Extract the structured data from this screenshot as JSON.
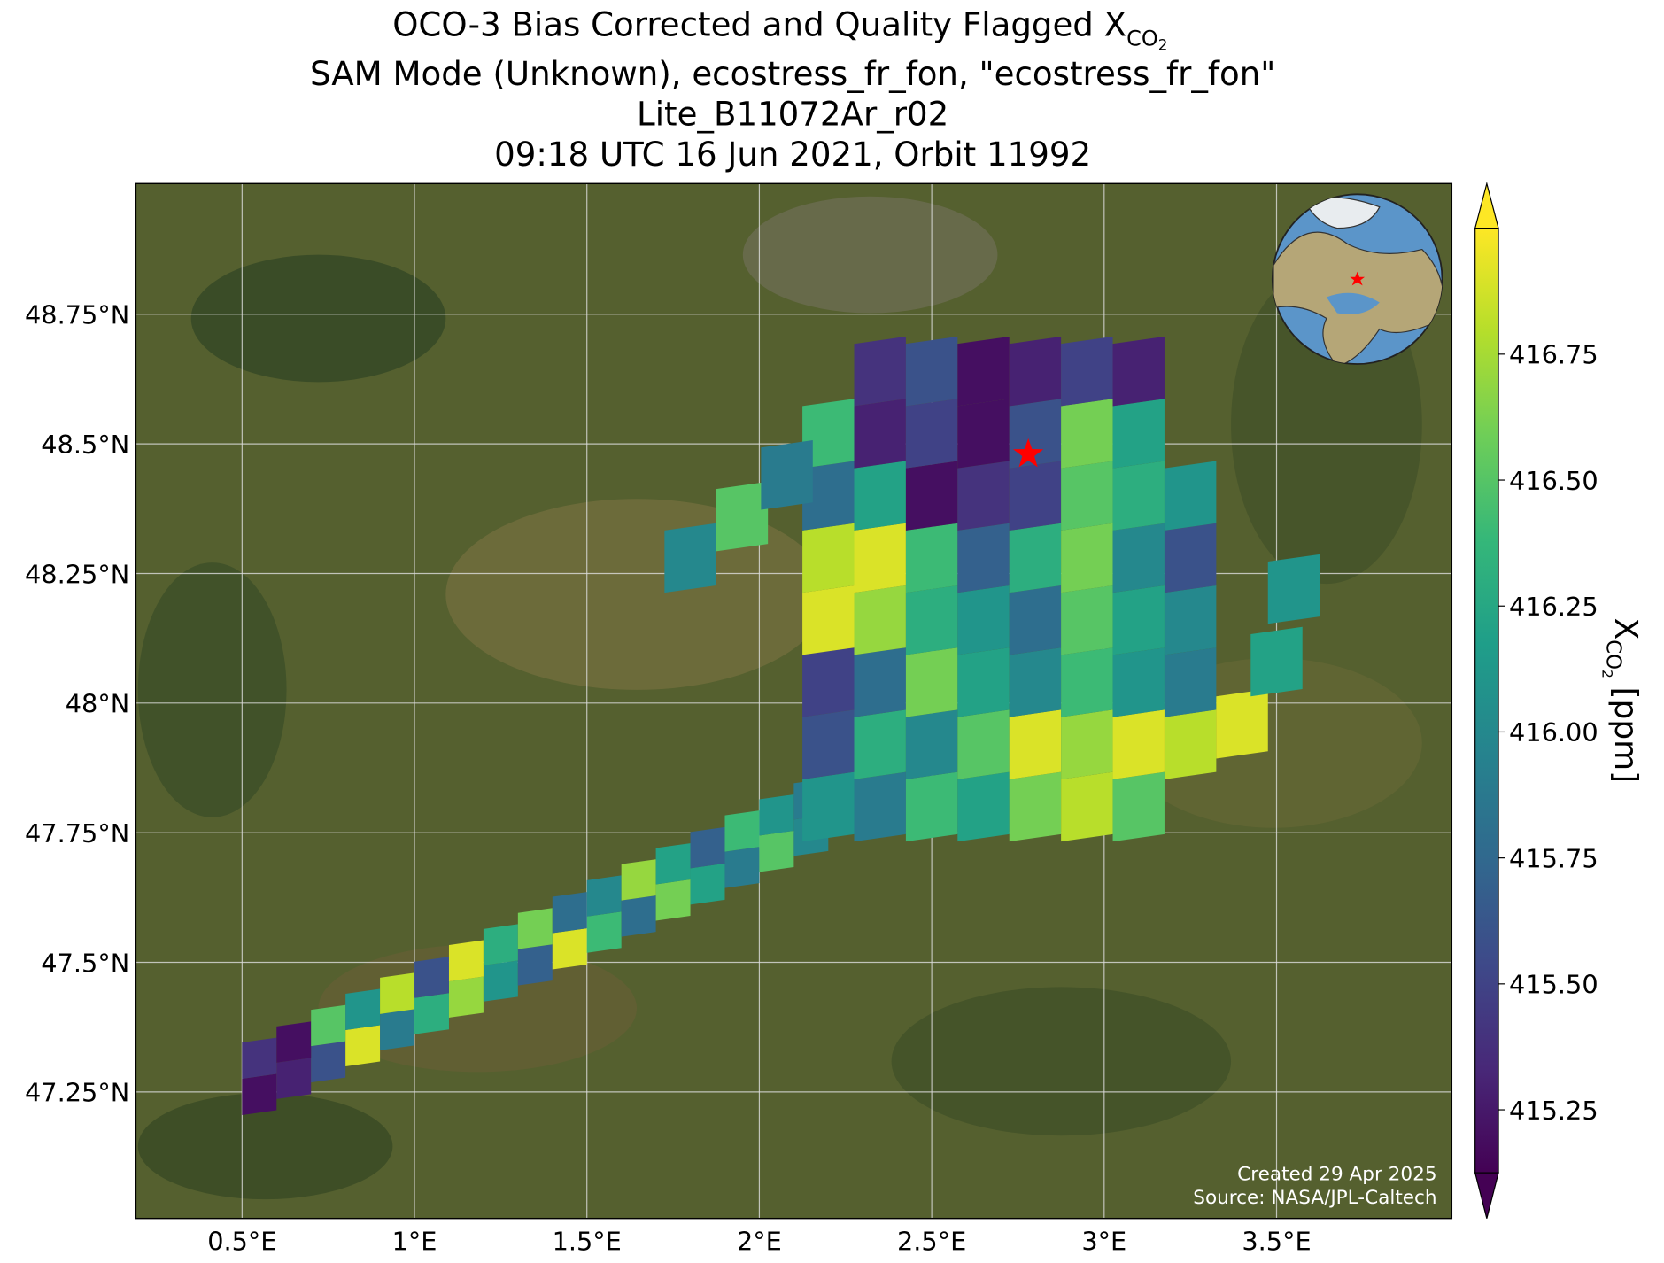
{
  "chart_data": {
    "type": "map",
    "title": [
      "OCO-3 Bias Corrected and Quality Flagged X",
      "SAM Mode (Unknown), ecostress_fr_fon, \"ecostress_fr_fon\"",
      "Lite_B11072Ar_r02",
      "09:18 UTC 16 Jun 2021, Orbit 11992"
    ],
    "title_subscript": "CO",
    "title_subscript2": "2",
    "xlim": [
      0.192,
      4.008
    ],
    "ylim": [
      47.006,
      49.002
    ],
    "xticks": [
      {
        "value": 0.5,
        "label": "0.5°E"
      },
      {
        "value": 1,
        "label": "1°E"
      },
      {
        "value": 1.5,
        "label": "1.5°E"
      },
      {
        "value": 2,
        "label": "2°E"
      },
      {
        "value": 2.5,
        "label": "2.5°E"
      },
      {
        "value": 3,
        "label": "3°E"
      },
      {
        "value": 3.5,
        "label": "3.5°E"
      }
    ],
    "yticks": [
      {
        "value": 47.25,
        "label": "47.25°N"
      },
      {
        "value": 47.5,
        "label": "47.5°N"
      },
      {
        "value": 47.75,
        "label": "47.75°N"
      },
      {
        "value": 48,
        "label": "48°N"
      },
      {
        "value": 48.25,
        "label": "48.25°N"
      },
      {
        "value": 48.5,
        "label": "48.5°N"
      },
      {
        "value": 48.75,
        "label": "48.75°N"
      }
    ],
    "grid": true,
    "colormap": "viridis",
    "clim": [
      415.125,
      417.0
    ],
    "colorbar_ticks": [
      415.25,
      {
        "value": 415.5,
        "label": "415.50"
      },
      415.75,
      {
        "value": 416,
        "label": "416.00"
      },
      416.25,
      {
        "value": 416.5,
        "label": "416.50"
      },
      416.75
    ],
    "colorbar_label": {
      "symbol": "X",
      "subscript": "CO",
      "subscript2": "2",
      "unit": "[ppm]"
    },
    "site": {
      "lon": 2.78,
      "lat": 48.48,
      "color": "#ff0000"
    },
    "soundings": [
      {
        "lon": [
          0.55,
          0.65,
          0.75,
          0.85,
          0.95,
          1.05,
          1.15,
          1.25,
          1.35,
          1.45,
          1.55,
          1.65,
          1.75,
          1.85,
          1.95,
          2.05,
          2.15,
          0.55,
          0.65,
          0.75,
          0.85,
          0.95,
          1.05,
          1.15,
          1.25,
          1.35,
          1.45,
          1.55,
          1.65,
          1.75,
          1.85,
          1.95,
          2.05,
          2.15
        ],
        "lat": [
          47.245,
          47.276,
          47.308,
          47.339,
          47.37,
          47.401,
          47.433,
          47.464,
          47.495,
          47.526,
          47.558,
          47.589,
          47.62,
          47.651,
          47.683,
          47.714,
          47.745,
          47.315,
          47.346,
          47.378,
          47.409,
          47.44,
          47.471,
          47.503,
          47.534,
          47.565,
          47.596,
          47.628,
          47.659,
          47.69,
          47.721,
          47.753,
          47.784,
          47.815
        ],
        "values": [
          415.2,
          415.3,
          415.6,
          416.9,
          415.9,
          416.3,
          416.7,
          416.1,
          415.7,
          416.9,
          416.4,
          415.8,
          416.6,
          416.2,
          415.9,
          416.5,
          416.0,
          415.4,
          415.2,
          416.5,
          416.1,
          416.8,
          415.6,
          416.9,
          416.3,
          416.6,
          415.8,
          416.0,
          416.7,
          416.2,
          415.7,
          416.4,
          416.1,
          415.9
        ]
      },
      {
        "lon": [
          2.2,
          2.35,
          2.5,
          2.65,
          2.8,
          2.95,
          3.1,
          2.2,
          2.35,
          2.5,
          2.65,
          2.8,
          2.95,
          3.1,
          3.25,
          2.2,
          2.35,
          2.5,
          2.65,
          2.8,
          2.95,
          3.1,
          3.25,
          2.2,
          2.35,
          2.5,
          2.65,
          2.8,
          2.95,
          3.1,
          3.25,
          2.2,
          2.35,
          2.5,
          2.65,
          2.8,
          2.95,
          3.1,
          3.25,
          2.2,
          2.35,
          2.5,
          2.65,
          2.8,
          2.95,
          3.1,
          3.25,
          2.2,
          2.35,
          2.5,
          2.65,
          2.8,
          2.95,
          3.1,
          2.35,
          2.5,
          2.65,
          2.8,
          2.95,
          3.1,
          1.8,
          1.95,
          2.08,
          3.4,
          3.5,
          3.55
        ],
        "lat": [
          47.8,
          47.8,
          47.8,
          47.8,
          47.8,
          47.8,
          47.8,
          47.92,
          47.92,
          47.92,
          47.92,
          47.92,
          47.92,
          47.92,
          47.92,
          48.04,
          48.04,
          48.04,
          48.04,
          48.04,
          48.04,
          48.04,
          48.04,
          48.16,
          48.16,
          48.16,
          48.16,
          48.16,
          48.16,
          48.16,
          48.16,
          48.28,
          48.28,
          48.28,
          48.28,
          48.28,
          48.28,
          48.28,
          48.28,
          48.4,
          48.4,
          48.4,
          48.4,
          48.4,
          48.4,
          48.4,
          48.4,
          48.52,
          48.52,
          48.52,
          48.52,
          48.52,
          48.52,
          48.52,
          48.64,
          48.64,
          48.64,
          48.64,
          48.64,
          48.64,
          48.28,
          48.36,
          48.44,
          47.96,
          48.08,
          48.22
        ],
        "values": [
          416.1,
          415.9,
          416.4,
          416.2,
          416.6,
          416.8,
          416.5,
          415.6,
          416.3,
          416.0,
          416.5,
          416.9,
          416.7,
          416.9,
          416.8,
          415.5,
          415.8,
          416.6,
          416.2,
          416.0,
          416.4,
          416.1,
          415.9,
          416.9,
          416.7,
          416.3,
          416.1,
          415.8,
          416.5,
          416.2,
          416.0,
          416.8,
          416.9,
          416.4,
          415.7,
          416.3,
          416.6,
          416.0,
          415.6,
          415.8,
          416.2,
          415.2,
          415.4,
          415.5,
          416.5,
          416.3,
          416.1,
          416.4,
          415.3,
          415.5,
          415.2,
          415.6,
          416.6,
          416.2,
          415.4,
          415.6,
          415.2,
          415.3,
          415.5,
          415.3,
          416.0,
          416.5,
          415.9,
          416.9,
          416.2,
          416.1
        ]
      }
    ],
    "credits": [
      "Created 29 Apr 2025",
      "Source: NASA/JPL-Caltech"
    ]
  }
}
